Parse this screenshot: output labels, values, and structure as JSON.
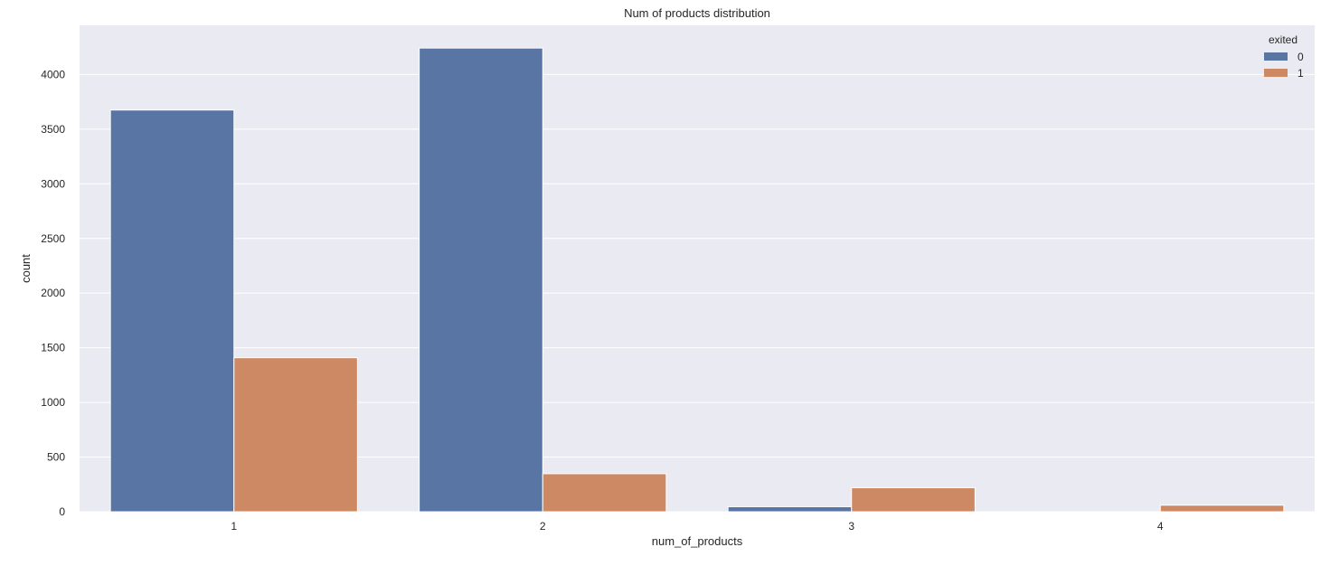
{
  "chart_data": {
    "type": "bar",
    "title": "Num of products distribution",
    "xlabel": "num_of_products",
    "ylabel": "count",
    "categories": [
      "1",
      "2",
      "3",
      "4"
    ],
    "series": [
      {
        "name": "0",
        "values": [
          3675,
          4242,
          46,
          0
        ],
        "color": "#5875a4"
      },
      {
        "name": "1",
        "values": [
          1409,
          348,
          220,
          60
        ],
        "color": "#cc8963"
      }
    ],
    "ylim": [
      0,
      4450
    ],
    "yticks": [
      0,
      500,
      1000,
      1500,
      2000,
      2500,
      3000,
      3500,
      4000
    ],
    "grid": true,
    "background": "#eaeaf2",
    "legend": {
      "title": "exited",
      "placement": "top-right"
    }
  }
}
